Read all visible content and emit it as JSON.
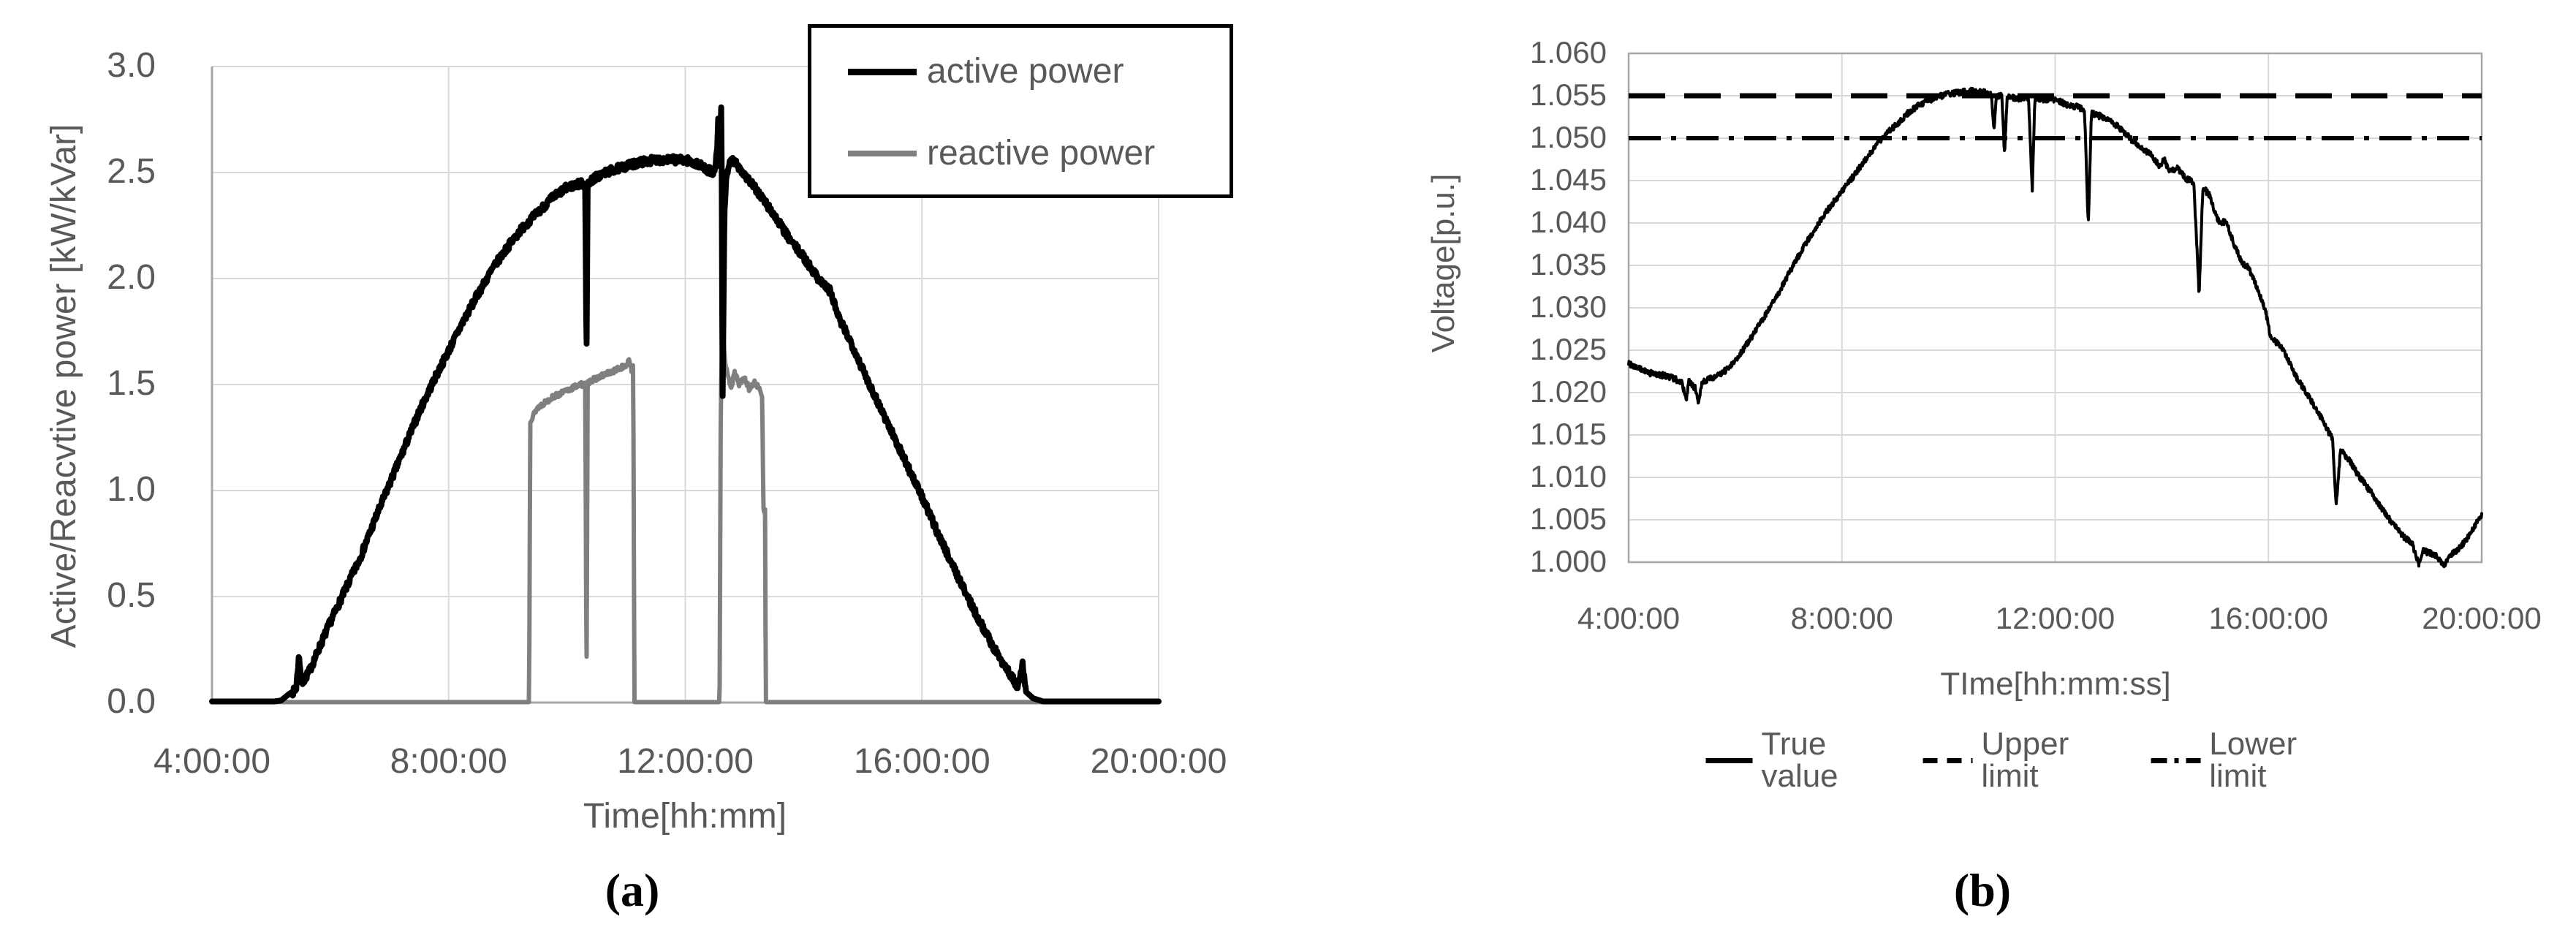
{
  "figure": {
    "caption_a": "(a)",
    "caption_b": "(b)",
    "background": "#ffffff"
  },
  "colors": {
    "text": "#595959",
    "gridline": "#d9d9d9",
    "axis_line": "#a6a6a6",
    "active_power": "#000000",
    "reactive_power": "#7f7f7f",
    "true_value": "#000000",
    "limit_lines": "#000000"
  },
  "chart_data": [
    {
      "id": "a",
      "type": "line",
      "title": "",
      "xlabel": "Time[hh:mm]",
      "ylabel": "Active/Reacvtive power [kW/kVar]",
      "x_ticks": [
        "4:00:00",
        "8:00:00",
        "12:00:00",
        "16:00:00",
        "20:00:00"
      ],
      "x_tick_hours": [
        4,
        8,
        12,
        16,
        20
      ],
      "y_ticks": [
        "0.0",
        "0.5",
        "1.0",
        "1.5",
        "2.0",
        "2.5",
        "3.0"
      ],
      "y_tick_values": [
        0,
        0.5,
        1.0,
        1.5,
        2.0,
        2.5,
        3.0
      ],
      "xlim_hours": [
        4,
        20
      ],
      "ylim": [
        0,
        3
      ],
      "grid": true,
      "legend": {
        "position": "top-right-box",
        "items": [
          {
            "label": "active power",
            "style": "solid",
            "color": "#000000"
          },
          {
            "label": "reactive power",
            "style": "solid",
            "color": "#7f7f7f"
          }
        ]
      },
      "series": [
        {
          "name": "active power",
          "color": "#000000",
          "width": 8,
          "noise": 0.018,
          "noise_floor": 0.05,
          "seed": 7,
          "points_h_kw": [
            [
              4,
              0.005
            ],
            [
              5.05,
              0.005
            ],
            [
              5.17,
              0.01
            ],
            [
              5.3,
              0.04
            ],
            [
              5.42,
              0.06
            ],
            [
              5.47,
              0.22
            ],
            [
              5.52,
              0.09
            ],
            [
              5.65,
              0.15
            ],
            [
              5.8,
              0.25
            ],
            [
              6,
              0.38
            ],
            [
              6.25,
              0.53
            ],
            [
              6.5,
              0.68
            ],
            [
              6.75,
              0.86
            ],
            [
              7,
              1.03
            ],
            [
              7.25,
              1.2
            ],
            [
              7.5,
              1.37
            ],
            [
              7.75,
              1.52
            ],
            [
              8,
              1.66
            ],
            [
              8.25,
              1.8
            ],
            [
              8.5,
              1.93
            ],
            [
              8.75,
              2.05
            ],
            [
              9,
              2.15
            ],
            [
              9.25,
              2.24
            ],
            [
              9.5,
              2.31
            ],
            [
              9.75,
              2.38
            ],
            [
              10,
              2.43
            ],
            [
              10.25,
              2.45
            ],
            [
              10.31,
              2.44
            ],
            [
              10.33,
              1.57
            ],
            [
              10.35,
              2.45
            ],
            [
              10.5,
              2.48
            ],
            [
              10.75,
              2.51
            ],
            [
              11,
              2.53
            ],
            [
              11.25,
              2.55
            ],
            [
              11.5,
              2.56
            ],
            [
              11.75,
              2.56
            ],
            [
              12,
              2.56
            ],
            [
              12.2,
              2.54
            ],
            [
              12.4,
              2.51
            ],
            [
              12.5,
              2.5
            ],
            [
              12.54,
              2.62
            ],
            [
              12.56,
              2.78
            ],
            [
              12.58,
              2.5
            ],
            [
              12.61,
              2.86
            ],
            [
              12.63,
              1.4
            ],
            [
              12.66,
              2.3
            ],
            [
              12.7,
              2.5
            ],
            [
              12.78,
              2.56
            ],
            [
              12.9,
              2.53
            ],
            [
              13,
              2.49
            ],
            [
              13.25,
              2.4
            ],
            [
              13.5,
              2.3
            ],
            [
              13.75,
              2.19
            ],
            [
              14,
              2.1
            ],
            [
              14.25,
              2.0
            ],
            [
              14.45,
              1.94
            ],
            [
              14.6,
              1.81
            ],
            [
              14.8,
              1.7
            ],
            [
              15,
              1.57
            ],
            [
              15.25,
              1.42
            ],
            [
              15.5,
              1.27
            ],
            [
              15.75,
              1.12
            ],
            [
              16,
              0.97
            ],
            [
              16.25,
              0.81
            ],
            [
              16.5,
              0.66
            ],
            [
              16.75,
              0.51
            ],
            [
              17,
              0.37
            ],
            [
              17.25,
              0.24
            ],
            [
              17.5,
              0.13
            ],
            [
              17.62,
              0.07
            ],
            [
              17.7,
              0.18
            ],
            [
              17.76,
              0.05
            ],
            [
              17.88,
              0.02
            ],
            [
              18.05,
              0.005
            ],
            [
              20,
              0.005
            ]
          ]
        },
        {
          "name": "reactive power",
          "color": "#7f7f7f",
          "width": 6,
          "noise": 0.012,
          "noise_floor": 0.1,
          "seed": 13,
          "points_h_kw": [
            [
              4,
              0.002
            ],
            [
              9.36,
              0.002
            ],
            [
              9.38,
              1.33
            ],
            [
              9.5,
              1.39
            ],
            [
              9.75,
              1.44
            ],
            [
              10,
              1.47
            ],
            [
              10.2,
              1.5
            ],
            [
              10.31,
              1.5
            ],
            [
              10.33,
              0.01
            ],
            [
              10.35,
              1.51
            ],
            [
              10.5,
              1.53
            ],
            [
              10.75,
              1.56
            ],
            [
              11,
              1.59
            ],
            [
              11.05,
              1.61
            ],
            [
              11.09,
              1.57
            ],
            [
              11.12,
              1.6
            ],
            [
              11.14,
              0.002
            ],
            [
              12.58,
              0.002
            ],
            [
              12.6,
              1.45
            ],
            [
              12.63,
              1.77
            ],
            [
              12.67,
              1.62
            ],
            [
              12.72,
              1.53
            ],
            [
              12.78,
              1.49
            ],
            [
              12.84,
              1.56
            ],
            [
              12.9,
              1.5
            ],
            [
              13,
              1.53
            ],
            [
              13.08,
              1.48
            ],
            [
              13.18,
              1.51
            ],
            [
              13.27,
              1.47
            ],
            [
              13.3,
              1.45
            ],
            [
              13.32,
              0.92
            ],
            [
              13.35,
              0.9
            ],
            [
              13.36,
              0.002
            ],
            [
              20,
              0.002
            ]
          ]
        }
      ]
    },
    {
      "id": "b",
      "type": "line",
      "title": "",
      "xlabel": "TIme[hh:mm:ss]",
      "ylabel": "Voltage[p.u.]",
      "x_ticks": [
        "4:00:00",
        "8:00:00",
        "12:00:00",
        "16:00:00",
        "20:00:00"
      ],
      "x_tick_hours": [
        4,
        8,
        12,
        16,
        20
      ],
      "y_ticks": [
        "1.000",
        "1.005",
        "1.010",
        "1.015",
        "1.020",
        "1.025",
        "1.030",
        "1.035",
        "1.040",
        "1.045",
        "1.050",
        "1.055",
        "1.060"
      ],
      "y_tick_values": [
        1.0,
        1.005,
        1.01,
        1.015,
        1.02,
        1.025,
        1.03,
        1.035,
        1.04,
        1.045,
        1.05,
        1.055,
        1.06
      ],
      "xlim_hours": [
        4,
        20
      ],
      "ylim": [
        1.0,
        1.06
      ],
      "grid": true,
      "legend": {
        "position": "bottom-row",
        "items": [
          {
            "label": "True value",
            "style": "solid",
            "color": "#000000"
          },
          {
            "label": "Upper limit",
            "style": "dashed",
            "color": "#000000"
          },
          {
            "label": "Lower limit",
            "style": "dashdot",
            "color": "#000000"
          }
        ]
      },
      "series": [
        {
          "name": "True value",
          "color": "#000000",
          "width": 4,
          "noise": 0.00035,
          "noise_floor": 0,
          "seed": 99,
          "points_h_pu": [
            [
              4,
              1.0235
            ],
            [
              4.2,
              1.0228
            ],
            [
              4.4,
              1.0223
            ],
            [
              4.6,
              1.0221
            ],
            [
              4.8,
              1.0218
            ],
            [
              5,
              1.0212
            ],
            [
              5.08,
              1.019
            ],
            [
              5.13,
              1.0213
            ],
            [
              5.25,
              1.0205
            ],
            [
              5.3,
              1.0187
            ],
            [
              5.38,
              1.0213
            ],
            [
              5.5,
              1.0216
            ],
            [
              5.75,
              1.0222
            ],
            [
              6,
              1.0238
            ],
            [
              6.25,
              1.026
            ],
            [
              6.5,
              1.0285
            ],
            [
              6.75,
              1.031
            ],
            [
              7,
              1.034
            ],
            [
              7.25,
              1.0368
            ],
            [
              7.5,
              1.0394
            ],
            [
              7.75,
              1.0417
            ],
            [
              8,
              1.0437
            ],
            [
              8.25,
              1.0458
            ],
            [
              8.5,
              1.048
            ],
            [
              8.75,
              1.05
            ],
            [
              9,
              1.0515
            ],
            [
              9.25,
              1.053
            ],
            [
              9.5,
              1.0541
            ],
            [
              9.75,
              1.0548
            ],
            [
              10,
              1.0552
            ],
            [
              10.3,
              1.0555
            ],
            [
              10.6,
              1.0556
            ],
            [
              10.8,
              1.0552
            ],
            [
              10.85,
              1.051
            ],
            [
              10.9,
              1.0551
            ],
            [
              11,
              1.0549
            ],
            [
              11.05,
              1.048
            ],
            [
              11.1,
              1.0549
            ],
            [
              11.3,
              1.0547
            ],
            [
              11.5,
              1.0548
            ],
            [
              11.57,
              1.0437
            ],
            [
              11.62,
              1.0546
            ],
            [
              11.8,
              1.0545
            ],
            [
              12,
              1.0546
            ],
            [
              12.2,
              1.054
            ],
            [
              12.4,
              1.0537
            ],
            [
              12.55,
              1.0533
            ],
            [
              12.62,
              1.0396
            ],
            [
              12.68,
              1.0529
            ],
            [
              12.8,
              1.0527
            ],
            [
              13,
              1.0522
            ],
            [
              13.2,
              1.0513
            ],
            [
              13.4,
              1.05
            ],
            [
              13.6,
              1.049
            ],
            [
              13.8,
              1.048
            ],
            [
              13.95,
              1.0468
            ],
            [
              14.05,
              1.0474
            ],
            [
              14.15,
              1.046
            ],
            [
              14.3,
              1.0465
            ],
            [
              14.45,
              1.0452
            ],
            [
              14.6,
              1.0448
            ],
            [
              14.7,
              1.0315
            ],
            [
              14.77,
              1.0442
            ],
            [
              14.9,
              1.0432
            ],
            [
              15,
              1.0412
            ],
            [
              15.1,
              1.0398
            ],
            [
              15.2,
              1.0403
            ],
            [
              15.35,
              1.0376
            ],
            [
              15.5,
              1.0353
            ],
            [
              15.62,
              1.0348
            ],
            [
              15.8,
              1.0322
            ],
            [
              15.95,
              1.0295
            ],
            [
              16.05,
              1.0263
            ],
            [
              16.2,
              1.0258
            ],
            [
              16.35,
              1.0241
            ],
            [
              16.5,
              1.0221
            ],
            [
              16.65,
              1.0206
            ],
            [
              16.8,
              1.0191
            ],
            [
              17,
              1.0169
            ],
            [
              17.1,
              1.0156
            ],
            [
              17.2,
              1.0147
            ],
            [
              17.27,
              1.0065
            ],
            [
              17.35,
              1.0132
            ],
            [
              17.5,
              1.0122
            ],
            [
              17.65,
              1.0106
            ],
            [
              17.8,
              1.0093
            ],
            [
              17.95,
              1.008
            ],
            [
              18.1,
              1.0066
            ],
            [
              18.3,
              1.0048
            ],
            [
              18.5,
              1.0032
            ],
            [
              18.7,
              1.0021
            ],
            [
              18.82,
              0.9998
            ],
            [
              18.9,
              1.0014
            ],
            [
              19,
              1.0011
            ],
            [
              19.15,
              1.0008
            ],
            [
              19.3,
              0.9996
            ],
            [
              19.4,
              1.0009
            ],
            [
              19.55,
              1.0014
            ],
            [
              19.7,
              1.0026
            ],
            [
              19.85,
              1.004
            ],
            [
              20,
              1.0056
            ]
          ]
        },
        {
          "name": "Upper limit",
          "style": "dashed",
          "color": "#000000",
          "width": 7,
          "value": 1.055
        },
        {
          "name": "Lower limit",
          "style": "dashdot",
          "color": "#000000",
          "width": 6,
          "value": 1.05
        }
      ]
    }
  ]
}
